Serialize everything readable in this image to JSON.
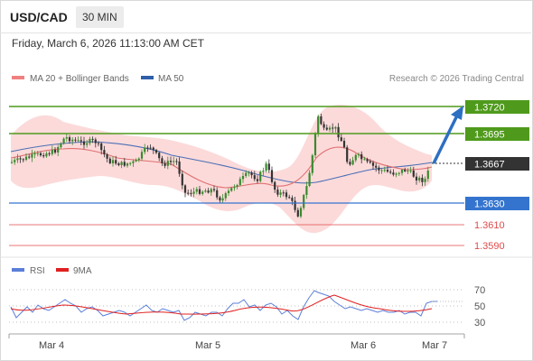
{
  "header": {
    "pair": "USD/CAD",
    "interval": "30 MIN"
  },
  "datetime": "Friday, March 6, 2026 11:13:00 AM CET",
  "legend": {
    "ma20_label": "MA 20 + Bollinger Bands",
    "ma50_label": "MA 50",
    "ma20_color": "#f08080",
    "ma50_color": "#2f5fa8"
  },
  "copyright": "Research © 2026 Trading Central",
  "levels": {
    "resistance_2": {
      "label": "1.3720",
      "color": "#4f9a1c"
    },
    "resistance_1": {
      "label": "1.3695",
      "color": "#4f9a1c"
    },
    "current": {
      "label": "1.3667",
      "color": "#333333"
    },
    "pivot": {
      "label": "1.3630",
      "color": "#3474cf"
    },
    "support_1": {
      "label": "1.3610",
      "color": "#e04a4a"
    },
    "support_2": {
      "label": "1.3590",
      "color": "#e04a4a"
    }
  },
  "rsi_legend": {
    "rsi_label": "RSI",
    "ma_label": "9MA",
    "rsi_color": "#5b7fd8",
    "ma_color": "#e02020"
  },
  "rsi_axis": [
    "70",
    "50",
    "30"
  ],
  "x_axis": [
    "Mar 4",
    "Mar 5",
    "Mar 6",
    "Mar 7"
  ]
}
